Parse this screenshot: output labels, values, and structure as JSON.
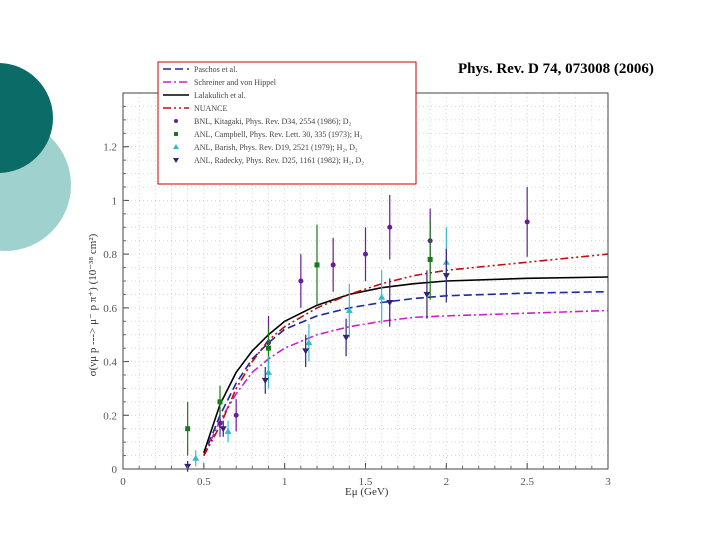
{
  "slide": {
    "citation": "Phys. Rev. D 74, 073008 (2006)"
  },
  "colors": {
    "teal_dark": "#0b6b66",
    "teal_light": "#9fd1cf",
    "legend_border": "#cc0000"
  },
  "chart_data": {
    "type": "line",
    "xlabel": "Eμ (GeV)",
    "ylabel": "σ(νμ p ---> μ⁻ p π⁺) (10⁻³⁸ cm²)",
    "xlim": [
      0,
      3
    ],
    "ylim": [
      0,
      1.4
    ],
    "xticks": [
      "0",
      "0.5",
      "1",
      "1.5",
      "2",
      "2.5",
      "3"
    ],
    "yticks": [
      "0",
      "0.2",
      "0.4",
      "0.6",
      "0.8",
      "1",
      "1.2"
    ],
    "legend_position": "top-left",
    "curves": [
      {
        "name": "Paschos et al.",
        "style": "dashed",
        "color": "#1a2a9c",
        "points": [
          [
            0.5,
            0.05
          ],
          [
            0.6,
            0.2
          ],
          [
            0.7,
            0.32
          ],
          [
            0.8,
            0.41
          ],
          [
            0.9,
            0.47
          ],
          [
            1.0,
            0.52
          ],
          [
            1.2,
            0.57
          ],
          [
            1.4,
            0.6
          ],
          [
            1.6,
            0.62
          ],
          [
            1.8,
            0.635
          ],
          [
            2.0,
            0.645
          ],
          [
            2.5,
            0.655
          ],
          [
            3.0,
            0.66
          ]
        ]
      },
      {
        "name": "Schreiner and von Hippel",
        "style": "dashdot",
        "color": "#cc22cc",
        "points": [
          [
            0.5,
            0.05
          ],
          [
            0.6,
            0.18
          ],
          [
            0.7,
            0.28
          ],
          [
            0.8,
            0.36
          ],
          [
            0.9,
            0.41
          ],
          [
            1.0,
            0.45
          ],
          [
            1.2,
            0.5
          ],
          [
            1.4,
            0.53
          ],
          [
            1.6,
            0.55
          ],
          [
            1.8,
            0.565
          ],
          [
            2.0,
            0.57
          ],
          [
            2.5,
            0.58
          ],
          [
            3.0,
            0.59
          ]
        ]
      },
      {
        "name": "Lalakulich et al.",
        "style": "solid",
        "color": "#000000",
        "points": [
          [
            0.5,
            0.06
          ],
          [
            0.6,
            0.24
          ],
          [
            0.7,
            0.36
          ],
          [
            0.8,
            0.44
          ],
          [
            0.9,
            0.5
          ],
          [
            1.0,
            0.55
          ],
          [
            1.2,
            0.61
          ],
          [
            1.4,
            0.65
          ],
          [
            1.6,
            0.675
          ],
          [
            1.8,
            0.69
          ],
          [
            2.0,
            0.7
          ],
          [
            2.5,
            0.71
          ],
          [
            3.0,
            0.715
          ]
        ]
      },
      {
        "name": "NUANCE",
        "style": "dashdotdot",
        "color": "#bb1111",
        "points": [
          [
            0.5,
            0.05
          ],
          [
            0.6,
            0.16
          ],
          [
            0.7,
            0.3
          ],
          [
            0.8,
            0.4
          ],
          [
            0.9,
            0.48
          ],
          [
            1.0,
            0.53
          ],
          [
            1.2,
            0.6
          ],
          [
            1.4,
            0.65
          ],
          [
            1.6,
            0.69
          ],
          [
            1.8,
            0.72
          ],
          [
            2.0,
            0.74
          ],
          [
            2.5,
            0.77
          ],
          [
            3.0,
            0.8
          ]
        ]
      }
    ],
    "series": [
      {
        "name": "BNL, Kitagaki, Phys. Rev. D34, 2554 (1986); D₂",
        "marker": "circle",
        "color": "#6a1b9a",
        "points": [
          [
            0.6,
            0.17,
            0.05
          ],
          [
            0.7,
            0.2,
            0.06
          ],
          [
            0.9,
            0.47,
            0.1
          ],
          [
            1.1,
            0.7,
            0.1
          ],
          [
            1.3,
            0.76,
            0.1
          ],
          [
            1.5,
            0.8,
            0.1
          ],
          [
            1.65,
            0.9,
            0.12
          ],
          [
            1.9,
            0.85,
            0.12
          ],
          [
            2.5,
            0.92,
            0.13
          ]
        ]
      },
      {
        "name": "ANL, Campbell, Phys. Rev. Lett. 30, 335 (1973); H₂",
        "marker": "square",
        "color": "#1a7a1a",
        "points": [
          [
            0.4,
            0.15,
            0.1
          ],
          [
            0.6,
            0.25,
            0.06
          ],
          [
            0.9,
            0.45,
            0.08
          ],
          [
            1.2,
            0.76,
            0.15
          ],
          [
            1.9,
            0.78,
            0.15
          ]
        ]
      },
      {
        "name": "ANL, Barish, Phys. Rev. D19, 2521 (1979); H₂, D₂",
        "marker": "triangle-up",
        "color": "#33bbcc",
        "points": [
          [
            0.45,
            0.04,
            0.03
          ],
          [
            0.65,
            0.14,
            0.04
          ],
          [
            0.9,
            0.36,
            0.06
          ],
          [
            1.15,
            0.47,
            0.07
          ],
          [
            1.4,
            0.59,
            0.1
          ],
          [
            1.6,
            0.64,
            0.1
          ],
          [
            2.0,
            0.77,
            0.13
          ]
        ]
      },
      {
        "name": "ANL, Radecky, Phys. Rev. D25, 1161 (1982); H₂, D₂",
        "marker": "triangle-down",
        "color": "#332277",
        "points": [
          [
            0.4,
            0.01,
            0.02
          ],
          [
            0.62,
            0.15,
            0.03
          ],
          [
            0.88,
            0.33,
            0.05
          ],
          [
            1.13,
            0.44,
            0.06
          ],
          [
            1.38,
            0.49,
            0.07
          ],
          [
            1.65,
            0.62,
            0.09
          ],
          [
            1.88,
            0.65,
            0.09
          ],
          [
            2.0,
            0.72,
            0.1
          ]
        ]
      }
    ]
  }
}
